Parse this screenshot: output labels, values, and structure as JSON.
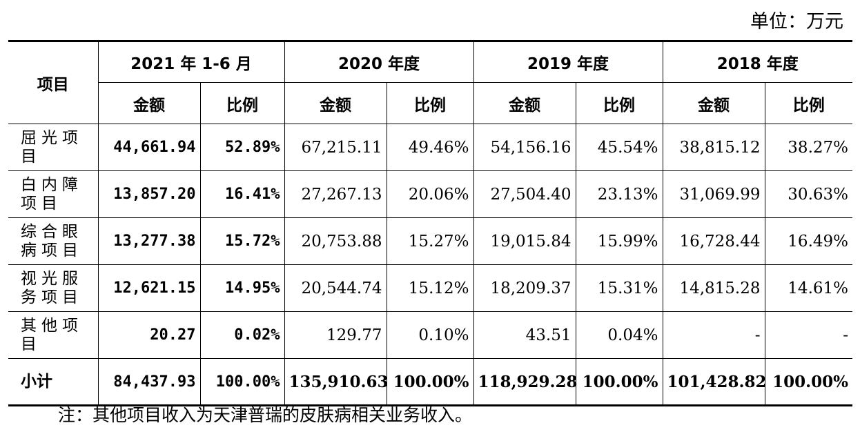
{
  "unit_label": "单位：万元",
  "header": {
    "item_col": "项目",
    "periods": [
      "2021 年 1-6 月",
      "2020 年度",
      "2019 年度",
      "2018 年度"
    ],
    "amount_label": "金额",
    "ratio_label": "比例"
  },
  "rows": [
    {
      "item": "屈光项目",
      "values": [
        "44,661.94",
        "52.89%",
        "67,215.11",
        "49.46%",
        "54,156.16",
        "45.54%",
        "38,815.12",
        "38.27%"
      ]
    },
    {
      "item": "白内障项目",
      "values": [
        "13,857.20",
        "16.41%",
        "27,267.13",
        "20.06%",
        "27,504.40",
        "23.13%",
        "31,069.99",
        "30.63%"
      ]
    },
    {
      "item": "综合眼病项目",
      "values": [
        "13,277.38",
        "15.72%",
        "20,753.88",
        "15.27%",
        "19,015.84",
        "15.99%",
        "16,728.44",
        "16.49%"
      ]
    },
    {
      "item": "视光服务项目",
      "values": [
        "12,621.15",
        "14.95%",
        "20,544.74",
        "15.12%",
        "18,209.37",
        "15.31%",
        "14,815.28",
        "14.61%"
      ]
    },
    {
      "item": "其他项目",
      "values": [
        "20.27",
        "0.02%",
        "129.77",
        "0.10%",
        "43.51",
        "0.04%",
        "-",
        "-"
      ]
    }
  ],
  "subtotal": {
    "item": "小计",
    "values": [
      "84,437.93",
      "100.00%",
      "135,910.63",
      "100.00%",
      "118,929.28",
      "100.00%",
      "101,428.82",
      "100.00%"
    ]
  },
  "note": "注：其他项目收入为天津普瑞的皮肤病相关业务收入。"
}
